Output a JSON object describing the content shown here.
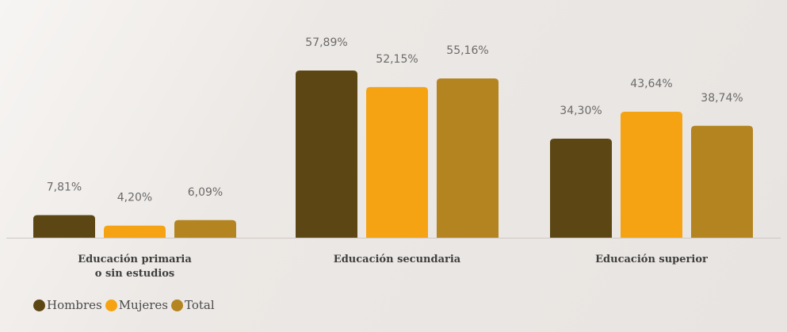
{
  "chart_data": {
    "type": "bar",
    "categories": [
      [
        "Educación primaria",
        "o sin estudios"
      ],
      [
        "Educación secundaria"
      ],
      [
        "Educación superior"
      ]
    ],
    "series": [
      {
        "name": "Hombres",
        "color": "#5c4714",
        "values": [
          7.81,
          57.89,
          34.3
        ],
        "labels": [
          "7,81%",
          "57,89%",
          "34,30%"
        ]
      },
      {
        "name": "Mujeres",
        "color": "#f5a313",
        "values": [
          4.2,
          52.15,
          43.64
        ],
        "labels": [
          "4,20%",
          "52,15%",
          "43,64%"
        ]
      },
      {
        "name": "Total",
        "color": "#b3841f",
        "values": [
          6.09,
          55.16,
          38.74
        ],
        "labels": [
          "6,09%",
          "55,16%",
          "38,74%"
        ]
      }
    ],
    "ylim": [
      0,
      57.89
    ],
    "grid": false,
    "legend_position": "bottom-left",
    "axis_color": "#cfc9c4"
  }
}
